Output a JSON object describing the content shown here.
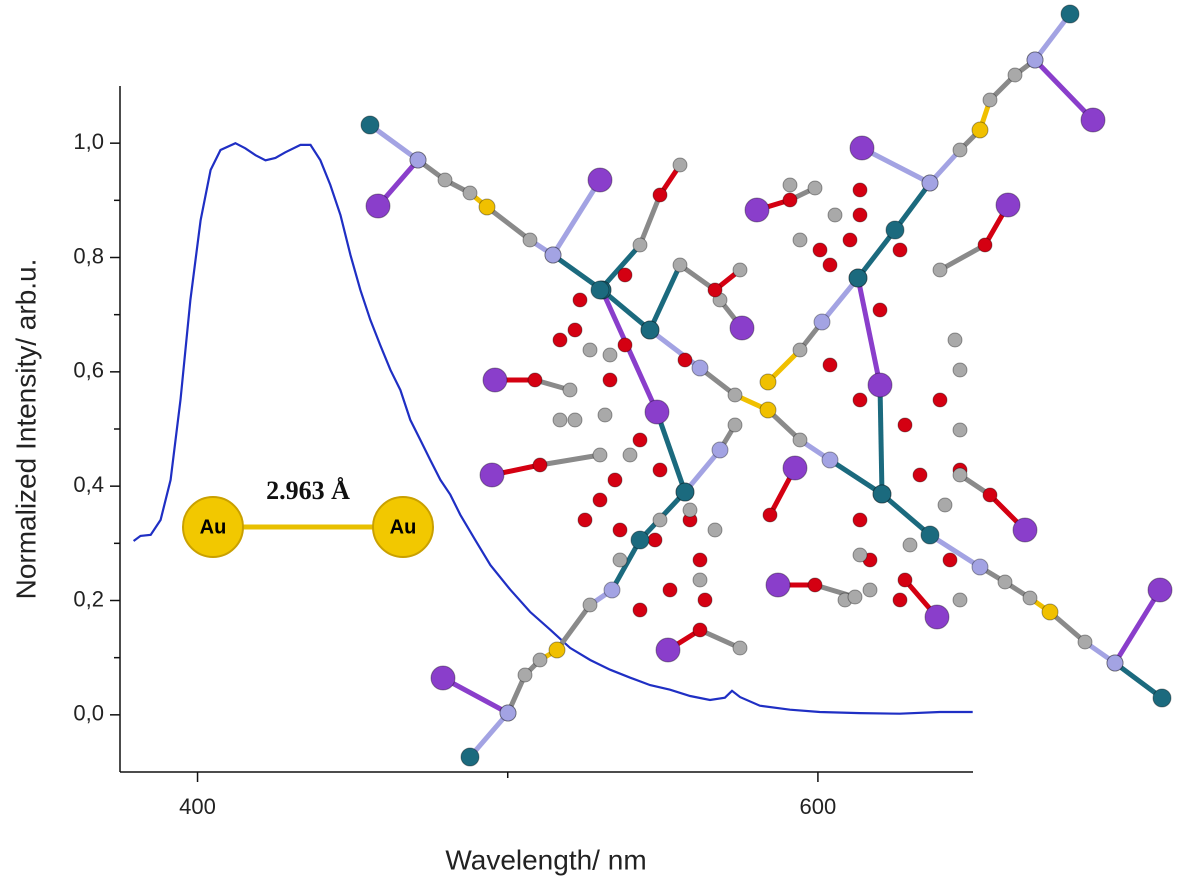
{
  "chart_data": {
    "type": "line",
    "x_label": "Wavelength/ nm",
    "y_label": "Normalized Intensity/ arb.u.",
    "xlim": [
      375,
      650
    ],
    "ylim": [
      -0.1,
      1.1
    ],
    "xticks": [
      400,
      600
    ],
    "x_minor_ticks": [
      500
    ],
    "yticks": [
      {
        "value": 0,
        "label": "0,0"
      },
      {
        "value": 0.2,
        "label": "0,2"
      },
      {
        "value": 0.4,
        "label": "0,4"
      },
      {
        "value": 0.6,
        "label": "0,6"
      },
      {
        "value": 0.8,
        "label": "0,8"
      },
      {
        "value": 1,
        "label": "1,0"
      }
    ],
    "y_minor_ticks": [
      0.1,
      0.3,
      0.5,
      0.7,
      0.9
    ],
    "grid": false,
    "series": [
      {
        "color": "#1f2fc4",
        "x": [
          379.4,
          381.6,
          384.9,
          388.1,
          391.3,
          394.5,
          397.7,
          401.0,
          404.2,
          407.4,
          412.2,
          415.4,
          418.7,
          421.9,
          425.1,
          428.3,
          433.2,
          436.4,
          439.6,
          442.8,
          446.1,
          449.3,
          452.5,
          455.7,
          458.9,
          462.2,
          465.4,
          468.6,
          471.8,
          475.0,
          478.3,
          481.5,
          484.7,
          489.5,
          494.4,
          500.8,
          507.2,
          513.7,
          520.1,
          526.6,
          533.0,
          539.5,
          545.9,
          552.3,
          558.8,
          565.2,
          570.0,
          572.3,
          574.9,
          581.3,
          591.0,
          600.6,
          613.5,
          626.4,
          639.3,
          649.9
        ],
        "values": [
          0.304,
          0.313,
          0.315,
          0.341,
          0.411,
          0.551,
          0.726,
          0.865,
          0.953,
          0.988,
          1.0,
          0.991,
          0.979,
          0.97,
          0.974,
          0.984,
          0.997,
          0.997,
          0.97,
          0.927,
          0.874,
          0.804,
          0.743,
          0.691,
          0.647,
          0.603,
          0.568,
          0.516,
          0.481,
          0.446,
          0.411,
          0.385,
          0.35,
          0.306,
          0.262,
          0.219,
          0.18,
          0.149,
          0.117,
          0.096,
          0.079,
          0.065,
          0.052,
          0.044,
          0.033,
          0.026,
          0.03,
          0.042,
          0.031,
          0.016,
          0.009,
          0.005,
          0.003,
          0.002,
          0.005,
          0.005
        ]
      }
    ],
    "annotations": {
      "atom_left": "Au",
      "atom_right": "Au",
      "distance": "2.963 Å"
    }
  }
}
